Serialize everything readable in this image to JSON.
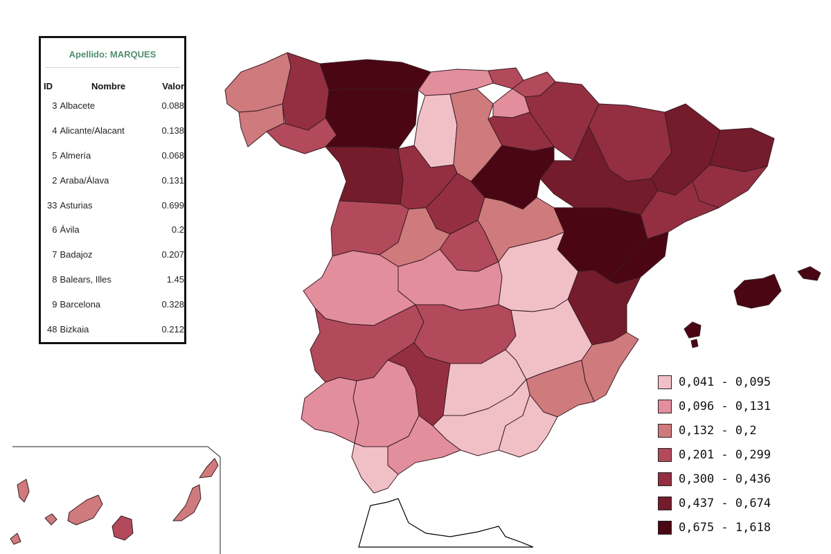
{
  "table": {
    "title": "Apellido: MARQUES",
    "headers": {
      "id": "ID",
      "name": "Nombre",
      "value": "Valor"
    },
    "rows": [
      {
        "id": "3",
        "name": "Albacete",
        "value": "0.088"
      },
      {
        "id": "4",
        "name": "Alicante/Alacant",
        "value": "0.138"
      },
      {
        "id": "5",
        "name": "Almería",
        "value": "0.068"
      },
      {
        "id": "2",
        "name": "Araba/Álava",
        "value": "0.131"
      },
      {
        "id": "33",
        "name": "Asturias",
        "value": "0.699"
      },
      {
        "id": "6",
        "name": "Ávila",
        "value": "0.2"
      },
      {
        "id": "7",
        "name": "Badajoz",
        "value": "0.207"
      },
      {
        "id": "8",
        "name": "Balears, Illes",
        "value": "1.45"
      },
      {
        "id": "9",
        "name": "Barcelona",
        "value": "0.328"
      },
      {
        "id": "48",
        "name": "Bizkaia",
        "value": "0.212"
      }
    ]
  },
  "legend": [
    {
      "label": "0,041 - 0,095",
      "color": "#f1c0c7"
    },
    {
      "label": "0,096 - 0,131",
      "color": "#e28e9c"
    },
    {
      "label": "0,132 - 0,2",
      "color": "#cf7a7c"
    },
    {
      "label": "0,201 - 0,299",
      "color": "#b24a5c"
    },
    {
      "label": "0,300 - 0,436",
      "color": "#942f42"
    },
    {
      "label": "0,437 - 0,674",
      "color": "#741c2c"
    },
    {
      "label": "0,675 - 1,618",
      "color": "#4a0713"
    }
  ]
}
